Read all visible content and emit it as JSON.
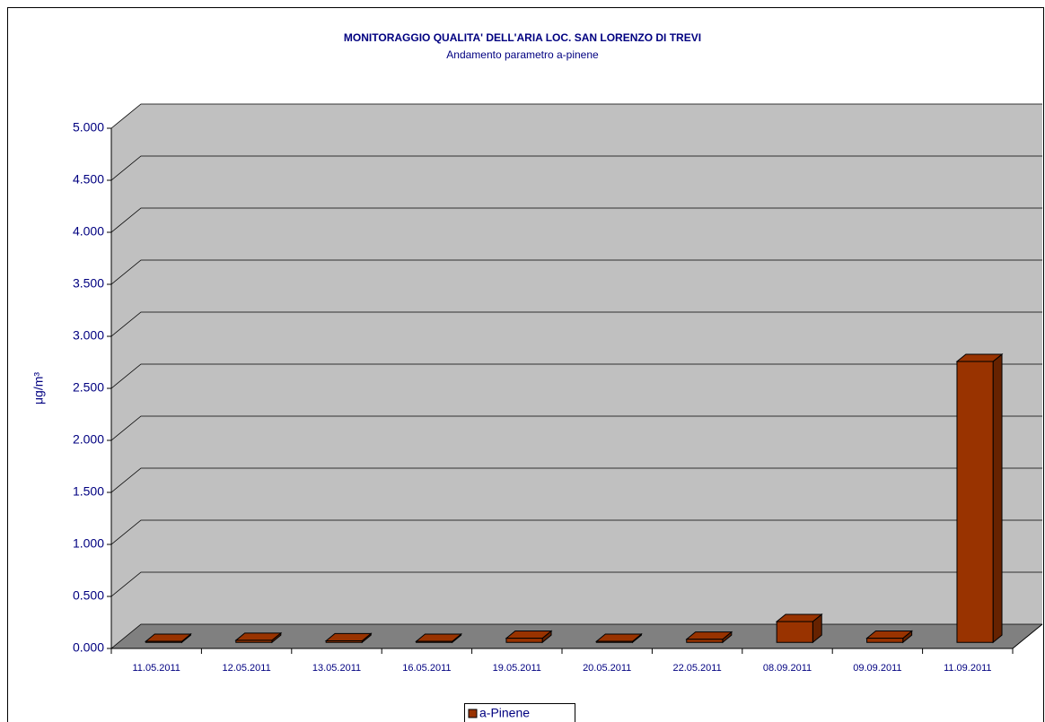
{
  "chart_data": {
    "type": "bar3d",
    "title": "MONITORAGGIO QUALITA' DELL'ARIA LOC. SAN LORENZO DI TREVI",
    "subtitle": "Andamento parametro a-pinene",
    "ylabel": "μg/m³",
    "categories": [
      "11.05.2011",
      "12.05.2011",
      "13.05.2011",
      "16.05.2011",
      "19.05.2011",
      "20.05.2011",
      "22.05.2011",
      "08.09.2011",
      "09.09.2011",
      "11.09.2011"
    ],
    "series": [
      {
        "name": "a-Pinene",
        "color": "#993300",
        "values": [
          0.01,
          0.02,
          0.015,
          0.01,
          0.04,
          0.01,
          0.03,
          0.2,
          0.04,
          2.7
        ]
      }
    ],
    "ylim": [
      0,
      5
    ],
    "yticks": [
      {
        "value": 0,
        "label": "0.000"
      },
      {
        "value": 0.5,
        "label": "0.500"
      },
      {
        "value": 1,
        "label": "1.000"
      },
      {
        "value": 1.5,
        "label": "1.500"
      },
      {
        "value": 2,
        "label": "2.000"
      },
      {
        "value": 2.5,
        "label": "2.500"
      },
      {
        "value": 3,
        "label": "3.000"
      },
      {
        "value": 3.5,
        "label": "3.500"
      },
      {
        "value": 4,
        "label": "4.000"
      },
      {
        "value": 4.5,
        "label": "4.500"
      },
      {
        "value": 5,
        "label": "5.000"
      }
    ],
    "grid": true,
    "legend": "bottom"
  }
}
